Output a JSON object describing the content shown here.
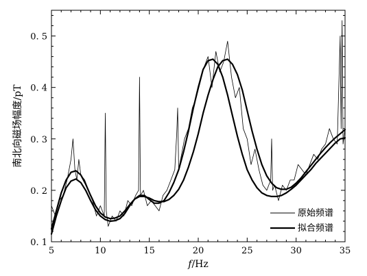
{
  "chart_data": {
    "type": "line",
    "xlabel_italic": "f",
    "xlabel_unit": "/Hz",
    "ylabel": "南北向磁场幅度/pT",
    "xlim": [
      5,
      35
    ],
    "ylim": [
      0.1,
      0.55
    ],
    "xticks": [
      5,
      10,
      15,
      20,
      25,
      30,
      35
    ],
    "yticks": [
      0.1,
      0.2,
      0.3,
      0.4,
      0.5
    ],
    "ytick_labels": [
      "0. 1",
      "0. 2",
      "0. 3",
      "0. 4",
      "0. 5"
    ],
    "legend_position": "bottom-right",
    "series": [
      {
        "name": "原始频谱",
        "style": "thin",
        "x": [
          5.0,
          5.4,
          5.8,
          6.2,
          6.6,
          7.0,
          7.2,
          7.4,
          7.6,
          7.8,
          8.0,
          8.4,
          8.8,
          9.2,
          9.6,
          10.0,
          10.4,
          10.5,
          10.6,
          10.8,
          11.2,
          11.6,
          12.0,
          12.4,
          12.8,
          13.2,
          13.6,
          13.9,
          14.0,
          14.1,
          14.4,
          14.8,
          15.2,
          15.6,
          16.0,
          16.4,
          16.8,
          17.2,
          17.6,
          17.8,
          17.9,
          18.0,
          18.2,
          18.6,
          19.0,
          19.4,
          19.8,
          20.2,
          20.6,
          21.0,
          21.4,
          21.8,
          22.2,
          22.6,
          23.0,
          23.4,
          23.8,
          24.2,
          24.6,
          25.0,
          25.4,
          25.8,
          26.2,
          26.6,
          27.0,
          27.4,
          27.5,
          27.6,
          27.8,
          28.2,
          28.6,
          29.0,
          29.4,
          29.8,
          30.2,
          30.6,
          31.0,
          31.4,
          31.8,
          32.2,
          32.6,
          33.0,
          33.4,
          33.8,
          34.2,
          34.5,
          34.6,
          34.7,
          34.8,
          35.0
        ],
        "y": [
          0.17,
          0.15,
          0.18,
          0.19,
          0.22,
          0.26,
          0.3,
          0.24,
          0.22,
          0.26,
          0.23,
          0.22,
          0.2,
          0.18,
          0.15,
          0.17,
          0.15,
          0.35,
          0.16,
          0.13,
          0.15,
          0.14,
          0.16,
          0.15,
          0.18,
          0.17,
          0.19,
          0.2,
          0.42,
          0.19,
          0.2,
          0.17,
          0.18,
          0.17,
          0.16,
          0.19,
          0.2,
          0.22,
          0.24,
          0.31,
          0.36,
          0.24,
          0.26,
          0.3,
          0.32,
          0.36,
          0.38,
          0.41,
          0.44,
          0.46,
          0.4,
          0.47,
          0.43,
          0.45,
          0.49,
          0.42,
          0.38,
          0.4,
          0.32,
          0.3,
          0.25,
          0.28,
          0.24,
          0.21,
          0.2,
          0.22,
          0.3,
          0.2,
          0.21,
          0.18,
          0.21,
          0.2,
          0.22,
          0.22,
          0.25,
          0.24,
          0.23,
          0.25,
          0.27,
          0.26,
          0.28,
          0.29,
          0.32,
          0.3,
          0.29,
          0.5,
          0.32,
          0.53,
          0.29,
          0.32
        ]
      },
      {
        "name": "拟合频谱",
        "style": "thick",
        "x": [
          5.0,
          5.5,
          6.0,
          6.5,
          7.0,
          7.5,
          8.0,
          8.5,
          9.0,
          9.5,
          10.0,
          10.5,
          11.0,
          11.5,
          12.0,
          12.5,
          13.0,
          13.5,
          14.0,
          14.5,
          15.0,
          15.5,
          16.0,
          16.5,
          17.0,
          17.5,
          18.0,
          18.5,
          19.0,
          19.5,
          20.0,
          20.5,
          21.0,
          21.5,
          22.0,
          22.5,
          23.0,
          23.5,
          24.0,
          24.5,
          25.0,
          25.5,
          26.0,
          26.5,
          27.0,
          27.5,
          28.0,
          28.5,
          29.0,
          29.5,
          30.0,
          30.5,
          31.0,
          31.5,
          32.0,
          32.5,
          33.0,
          33.5,
          34.0,
          34.5,
          35.0
        ],
        "y": [
          0.115,
          0.15,
          0.18,
          0.205,
          0.218,
          0.222,
          0.215,
          0.2,
          0.18,
          0.162,
          0.15,
          0.143,
          0.14,
          0.141,
          0.145,
          0.155,
          0.17,
          0.183,
          0.19,
          0.19,
          0.182,
          0.175,
          0.175,
          0.18,
          0.195,
          0.215,
          0.24,
          0.275,
          0.315,
          0.36,
          0.4,
          0.435,
          0.452,
          0.455,
          0.445,
          0.42,
          0.385,
          0.345,
          0.305,
          0.27,
          0.24,
          0.22,
          0.205,
          0.195,
          0.19,
          0.188,
          0.188,
          0.19,
          0.195,
          0.202,
          0.21,
          0.22,
          0.23,
          0.24,
          0.252,
          0.262,
          0.272,
          0.282,
          0.292,
          0.3,
          0.302
        ]
      },
      {
        "name": "",
        "style": "thick",
        "x": [
          5.0,
          5.5,
          6.0,
          6.5,
          7.0,
          7.5,
          8.0,
          8.5,
          9.0,
          9.5,
          10.0,
          10.5,
          11.0,
          11.5,
          12.0,
          12.5,
          13.0,
          13.5,
          14.0,
          14.5,
          15.0,
          15.5,
          16.0,
          16.5,
          17.0,
          17.5,
          18.0,
          18.5,
          19.0,
          19.5,
          20.0,
          20.5,
          21.0,
          21.5,
          22.0,
          22.5,
          23.0,
          23.5,
          24.0,
          24.5,
          25.0,
          25.5,
          26.0,
          26.5,
          27.0,
          27.5,
          28.0,
          28.5,
          29.0,
          29.5,
          30.0,
          30.5,
          31.0,
          31.5,
          32.0,
          32.5,
          33.0,
          33.5,
          34.0,
          34.5,
          35.0
        ],
        "y": [
          0.125,
          0.16,
          0.195,
          0.22,
          0.235,
          0.238,
          0.23,
          0.212,
          0.19,
          0.17,
          0.156,
          0.148,
          0.145,
          0.146,
          0.15,
          0.16,
          0.172,
          0.183,
          0.188,
          0.188,
          0.185,
          0.18,
          0.178,
          0.178,
          0.182,
          0.19,
          0.202,
          0.22,
          0.245,
          0.275,
          0.31,
          0.35,
          0.385,
          0.415,
          0.44,
          0.452,
          0.455,
          0.445,
          0.425,
          0.395,
          0.355,
          0.315,
          0.28,
          0.25,
          0.228,
          0.214,
          0.205,
          0.202,
          0.202,
          0.206,
          0.214,
          0.224,
          0.236,
          0.248,
          0.26,
          0.272,
          0.283,
          0.293,
          0.302,
          0.31,
          0.318
        ]
      }
    ]
  }
}
